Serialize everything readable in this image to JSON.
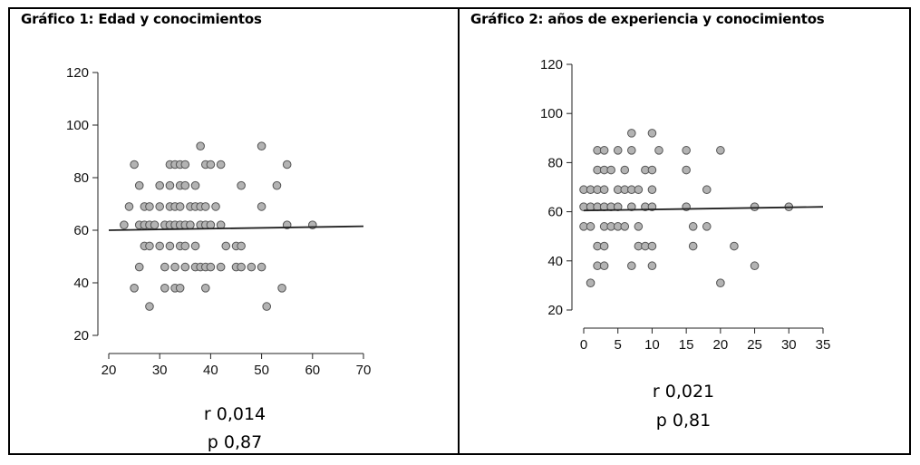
{
  "colors": {
    "point_fill": "#b3b3b3",
    "point_stroke": "#555555",
    "line": "#222222",
    "axis": "#222222"
  },
  "chart_data": [
    {
      "type": "scatter",
      "title": "Gráfico 1: Edad y conocimientos",
      "xlim": [
        20,
        70
      ],
      "ylim": [
        20,
        120
      ],
      "x_ticks": [
        "20",
        "30",
        "40",
        "50",
        "60",
        "70"
      ],
      "y_ticks": [
        "20",
        "40",
        "60",
        "80",
        "100",
        "120"
      ],
      "trend_line": {
        "x": [
          20,
          70
        ],
        "y": [
          60.0,
          61.5
        ]
      },
      "stats": {
        "r": "r 0,014",
        "p": "p 0,87"
      },
      "points": [
        [
          23,
          62
        ],
        [
          24,
          69
        ],
        [
          25,
          85
        ],
        [
          25,
          38
        ],
        [
          26,
          77
        ],
        [
          26,
          62
        ],
        [
          26,
          46
        ],
        [
          27,
          69
        ],
        [
          27,
          62
        ],
        [
          27,
          54
        ],
        [
          28,
          62
        ],
        [
          28,
          31
        ],
        [
          28,
          54
        ],
        [
          28,
          69
        ],
        [
          29,
          62
        ],
        [
          30,
          77
        ],
        [
          30,
          69
        ],
        [
          30,
          54
        ],
        [
          31,
          62
        ],
        [
          31,
          46
        ],
        [
          31,
          38
        ],
        [
          32,
          85
        ],
        [
          32,
          77
        ],
        [
          32,
          69
        ],
        [
          32,
          62
        ],
        [
          32,
          54
        ],
        [
          33,
          85
        ],
        [
          33,
          69
        ],
        [
          33,
          62
        ],
        [
          33,
          46
        ],
        [
          33,
          38
        ],
        [
          34,
          85
        ],
        [
          34,
          77
        ],
        [
          34,
          69
        ],
        [
          34,
          62
        ],
        [
          34,
          54
        ],
        [
          34,
          38
        ],
        [
          35,
          85
        ],
        [
          35,
          77
        ],
        [
          35,
          62
        ],
        [
          35,
          54
        ],
        [
          35,
          46
        ],
        [
          36,
          69
        ],
        [
          36,
          62
        ],
        [
          37,
          77
        ],
        [
          37,
          69
        ],
        [
          37,
          54
        ],
        [
          37,
          46
        ],
        [
          38,
          92
        ],
        [
          38,
          69
        ],
        [
          38,
          62
        ],
        [
          38,
          46
        ],
        [
          39,
          85
        ],
        [
          39,
          69
        ],
        [
          39,
          62
        ],
        [
          39,
          46
        ],
        [
          39,
          38
        ],
        [
          40,
          85
        ],
        [
          40,
          62
        ],
        [
          40,
          46
        ],
        [
          41,
          69
        ],
        [
          42,
          85
        ],
        [
          42,
          62
        ],
        [
          42,
          46
        ],
        [
          43,
          54
        ],
        [
          45,
          54
        ],
        [
          45,
          46
        ],
        [
          46,
          77
        ],
        [
          46,
          54
        ],
        [
          46,
          46
        ],
        [
          48,
          46
        ],
        [
          50,
          92
        ],
        [
          50,
          69
        ],
        [
          50,
          46
        ],
        [
          51,
          31
        ],
        [
          53,
          77
        ],
        [
          54,
          38
        ],
        [
          55,
          85
        ],
        [
          55,
          62
        ],
        [
          60,
          62
        ]
      ]
    },
    {
      "type": "scatter",
      "title": "Gráfico 2: años de experiencia y conocimientos",
      "xlim": [
        0,
        35
      ],
      "ylim": [
        20,
        120
      ],
      "x_ticks": [
        "0",
        "5",
        "10",
        "15",
        "20",
        "25",
        "30",
        "35"
      ],
      "y_ticks": [
        "20",
        "40",
        "60",
        "80",
        "100",
        "120"
      ],
      "trend_line": {
        "x": [
          0,
          35
        ],
        "y": [
          60.5,
          62.0
        ]
      },
      "stats": {
        "r": "r 0,021",
        "p": "p 0,81"
      },
      "points": [
        [
          0,
          69
        ],
        [
          0,
          62
        ],
        [
          0,
          54
        ],
        [
          1,
          69
        ],
        [
          1,
          62
        ],
        [
          1,
          54
        ],
        [
          1,
          31
        ],
        [
          2,
          85
        ],
        [
          2,
          77
        ],
        [
          2,
          69
        ],
        [
          2,
          62
        ],
        [
          2,
          46
        ],
        [
          2,
          38
        ],
        [
          3,
          85
        ],
        [
          3,
          77
        ],
        [
          3,
          69
        ],
        [
          3,
          62
        ],
        [
          3,
          54
        ],
        [
          3,
          46
        ],
        [
          3,
          38
        ],
        [
          4,
          77
        ],
        [
          4,
          62
        ],
        [
          4,
          54
        ],
        [
          5,
          85
        ],
        [
          5,
          69
        ],
        [
          5,
          62
        ],
        [
          5,
          54
        ],
        [
          6,
          77
        ],
        [
          6,
          69
        ],
        [
          6,
          54
        ],
        [
          7,
          92
        ],
        [
          7,
          85
        ],
        [
          7,
          69
        ],
        [
          7,
          62
        ],
        [
          7,
          38
        ],
        [
          8,
          69
        ],
        [
          8,
          54
        ],
        [
          8,
          46
        ],
        [
          9,
          77
        ],
        [
          9,
          62
        ],
        [
          9,
          46
        ],
        [
          10,
          92
        ],
        [
          10,
          77
        ],
        [
          10,
          69
        ],
        [
          10,
          62
        ],
        [
          10,
          46
        ],
        [
          10,
          38
        ],
        [
          11,
          85
        ],
        [
          15,
          85
        ],
        [
          15,
          77
        ],
        [
          15,
          62
        ],
        [
          16,
          54
        ],
        [
          16,
          46
        ],
        [
          18,
          69
        ],
        [
          18,
          54
        ],
        [
          20,
          85
        ],
        [
          20,
          31
        ],
        [
          22,
          46
        ],
        [
          25,
          62
        ],
        [
          25,
          38
        ],
        [
          30,
          62
        ]
      ]
    }
  ]
}
